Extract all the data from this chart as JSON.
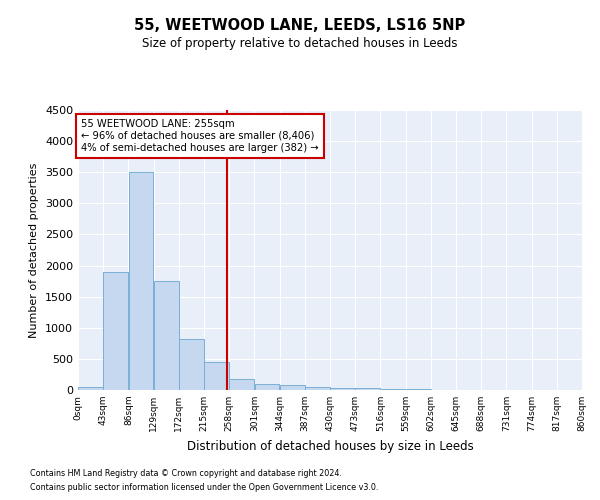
{
  "title": "55, WEETWOOD LANE, LEEDS, LS16 5NP",
  "subtitle": "Size of property relative to detached houses in Leeds",
  "xlabel": "Distribution of detached houses by size in Leeds",
  "ylabel": "Number of detached properties",
  "annotation_line1": "55 WEETWOOD LANE: 255sqm",
  "annotation_line2": "← 96% of detached houses are smaller (8,406)",
  "annotation_line3": "4% of semi-detached houses are larger (382) →",
  "property_size": 255,
  "bin_edges": [
    0,
    43,
    86,
    129,
    172,
    215,
    258,
    301,
    344,
    387,
    430,
    473,
    516,
    559,
    602,
    645,
    688,
    731,
    774,
    817,
    860
  ],
  "bar_heights": [
    50,
    1900,
    3500,
    1750,
    825,
    450,
    175,
    100,
    75,
    50,
    40,
    30,
    20,
    12,
    8,
    5,
    4,
    3,
    2,
    1
  ],
  "bar_color": "#c5d8f0",
  "bar_edge_color": "#7aafd4",
  "vline_color": "#cc0000",
  "vline_x": 255,
  "annotation_box_color": "#cc0000",
  "background_color": "#e8eff8",
  "ylim": [
    0,
    4500
  ],
  "yticks": [
    0,
    500,
    1000,
    1500,
    2000,
    2500,
    3000,
    3500,
    4000,
    4500
  ],
  "footnote1": "Contains HM Land Registry data © Crown copyright and database right 2024.",
  "footnote2": "Contains public sector information licensed under the Open Government Licence v3.0."
}
